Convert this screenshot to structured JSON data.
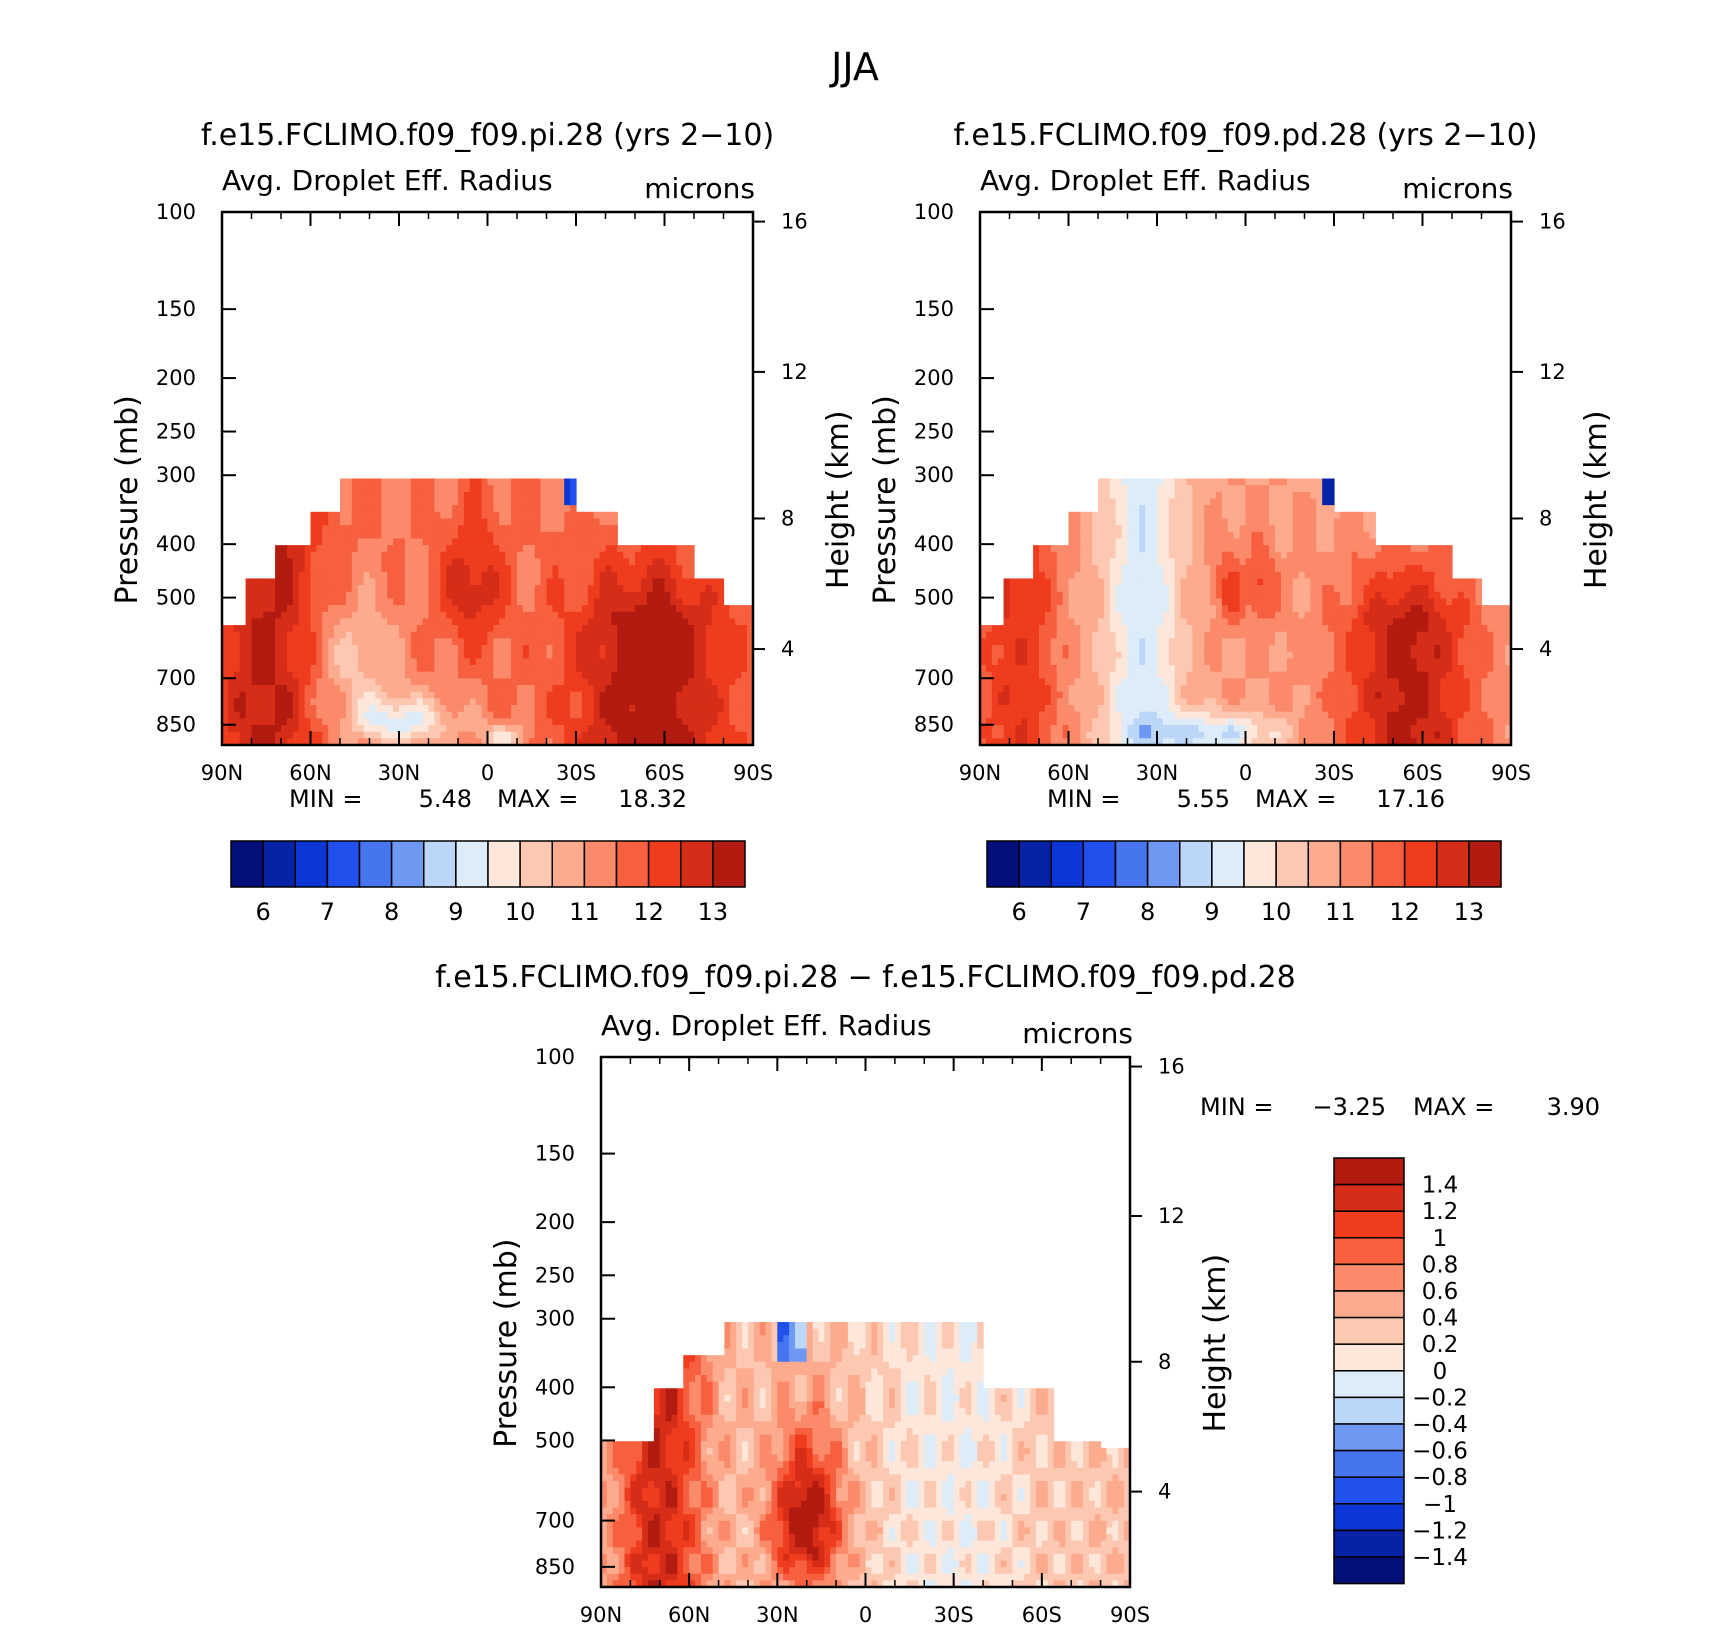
{
  "page_title": "JJA",
  "colors": {
    "pos": [
      "#fde6da",
      "#fcc8b2",
      "#fcab8f",
      "#fa8a6a",
      "#f6603f",
      "#f03c1e",
      "#d52d17",
      "#b21b10",
      "#8a0a05"
    ],
    "neg": [
      "#dcecf9",
      "#bcd6f7",
      "#96b8f5",
      "#6f98f3",
      "#4675f0",
      "#2150ed",
      "#0c36d6",
      "#0623a8",
      "#040f7a"
    ]
  },
  "chart_data": [
    {
      "type": "contour",
      "title": "f.e15.FCLIMO.f09_f09.pi.28 (yrs 2−10)",
      "subtitle": "Avg. Droplet Eff. Radius",
      "units": "microns",
      "ylabel": "Pressure (mb)",
      "y2label": "Height (km)",
      "x_ticks": [
        "90N",
        "60N",
        "30N",
        "0",
        "30S",
        "60S",
        "90S"
      ],
      "y_ticks": [
        "100",
        "150",
        "200",
        "250",
        "300",
        "400",
        "500",
        "700",
        "850"
      ],
      "y2_ticks": [
        "16",
        "12",
        "8",
        "4"
      ],
      "min_label": "MIN =",
      "min_value": "5.48",
      "max_label": "MAX =",
      "max_value": "18.32",
      "colorbar_labels": [
        "6",
        "7",
        "8",
        "9",
        "10",
        "11",
        "12",
        "13"
      ],
      "contour_levels": [
        6,
        6.5,
        7,
        7.5,
        8,
        8.5,
        9,
        9.5,
        10,
        10.5,
        11,
        11.5,
        12,
        12.5,
        13
      ],
      "field": "pi"
    },
    {
      "type": "contour",
      "title": "f.e15.FCLIMO.f09_f09.pd.28 (yrs 2−10)",
      "subtitle": "Avg. Droplet Eff. Radius",
      "units": "microns",
      "ylabel": "Pressure (mb)",
      "y2label": "Height (km)",
      "x_ticks": [
        "90N",
        "60N",
        "30N",
        "0",
        "30S",
        "60S",
        "90S"
      ],
      "y_ticks": [
        "100",
        "150",
        "200",
        "250",
        "300",
        "400",
        "500",
        "700",
        "850"
      ],
      "y2_ticks": [
        "16",
        "12",
        "8",
        "4"
      ],
      "min_label": "MIN =",
      "min_value": "5.55",
      "max_label": "MAX =",
      "max_value": "17.16",
      "colorbar_labels": [
        "6",
        "7",
        "8",
        "9",
        "10",
        "11",
        "12",
        "13"
      ],
      "contour_levels": [
        6,
        6.5,
        7,
        7.5,
        8,
        8.5,
        9,
        9.5,
        10,
        10.5,
        11,
        11.5,
        12,
        12.5,
        13
      ],
      "field": "pd"
    },
    {
      "type": "contour",
      "title": "f.e15.FCLIMO.f09_f09.pi.28 − f.e15.FCLIMO.f09_f09.pd.28",
      "subtitle": "Avg. Droplet Eff. Radius",
      "units": "microns",
      "ylabel": "Pressure (mb)",
      "y2label": "Height (km)",
      "x_ticks": [
        "90N",
        "60N",
        "30N",
        "0",
        "30S",
        "60S",
        "90S"
      ],
      "y_ticks": [
        "100",
        "150",
        "200",
        "250",
        "300",
        "400",
        "500",
        "700",
        "850"
      ],
      "y2_ticks": [
        "16",
        "12",
        "8",
        "4"
      ],
      "min_label": "MIN =",
      "min_value": "−3.25",
      "max_label": "MAX =",
      "max_value": "3.90",
      "colorbar_labels": [
        "1.4",
        "1.2",
        "1",
        "0.8",
        "0.6",
        "0.4",
        "0.2",
        "0",
        "−0.2",
        "−0.4",
        "−0.6",
        "−0.8",
        "−1",
        "−1.2",
        "−1.4"
      ],
      "contour_levels": [
        -1.4,
        -1.2,
        -1,
        -0.8,
        -0.6,
        -0.4,
        -0.2,
        0,
        0.2,
        0.4,
        0.6,
        0.8,
        1,
        1.2,
        1.4
      ],
      "field": "diff"
    }
  ]
}
